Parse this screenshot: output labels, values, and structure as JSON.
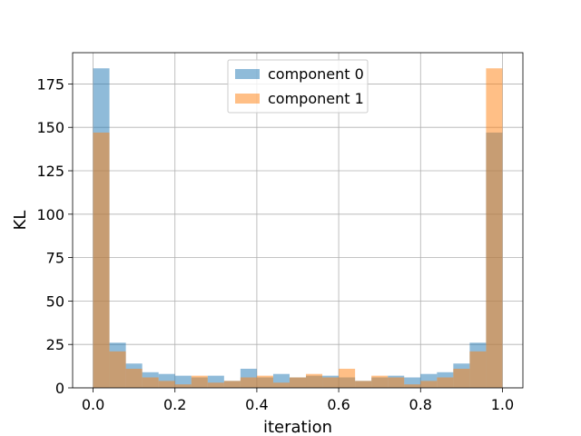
{
  "chart_data": {
    "type": "bar",
    "subtype": "overlaid-histogram",
    "title": "",
    "xlabel": "iteration",
    "ylabel": "KL",
    "xlim": [
      -0.05,
      1.05
    ],
    "ylim": [
      0,
      193
    ],
    "xticks": [
      0.0,
      0.2,
      0.4,
      0.6,
      0.8,
      1.0
    ],
    "xtick_labels": [
      "0.0",
      "0.2",
      "0.4",
      "0.6",
      "0.8",
      "1.0"
    ],
    "yticks": [
      0,
      25,
      50,
      75,
      100,
      125,
      150,
      175
    ],
    "ytick_labels": [
      "0",
      "25",
      "50",
      "75",
      "100",
      "125",
      "150",
      "175"
    ],
    "grid": true,
    "legend_position": "top-center",
    "bins": 25,
    "bin_range": [
      0.0,
      1.0
    ],
    "series": [
      {
        "name": "component 0",
        "color": "#1f77b4",
        "opacity": 0.5,
        "values": [
          184,
          26,
          14,
          9,
          8,
          7,
          6,
          7,
          4,
          11,
          6,
          8,
          6,
          7,
          7,
          6,
          4,
          6,
          7,
          6,
          8,
          9,
          14,
          26,
          147
        ]
      },
      {
        "name": "component 1",
        "color": "#ff7f0e",
        "opacity": 0.5,
        "values": [
          147,
          21,
          11,
          6,
          4,
          2,
          7,
          3,
          4,
          6,
          7,
          3,
          6,
          8,
          6,
          11,
          4,
          7,
          6,
          2,
          4,
          6,
          11,
          21,
          184
        ]
      }
    ]
  }
}
